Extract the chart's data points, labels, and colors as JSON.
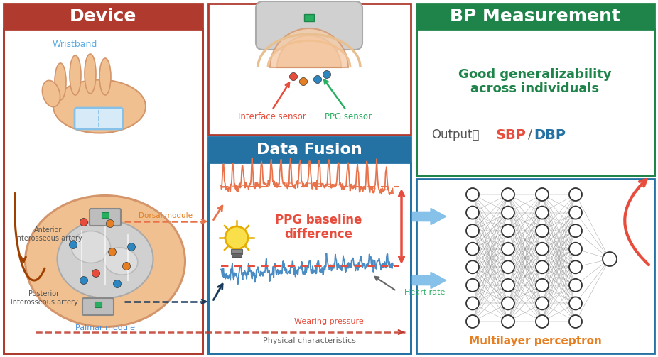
{
  "device_panel": {
    "title": "Device",
    "title_color": "#FFFFFF",
    "bg_color": "#B03A2E",
    "border_color": "#B03A2E",
    "wristband_label": "Wristband",
    "wristband_color": "#5DADE2",
    "dorsal_label": "Dorsal module",
    "dorsal_color": "#E67E22",
    "anterior_label": "Anterior\ninterosseous artery",
    "anterior_color": "#555555",
    "posterior_label": "Posterior\ninterosseous artery",
    "posterior_color": "#555555",
    "palmar_label": "Palmar module",
    "palmar_color": "#4A90D9",
    "skin_color": "#F0C090",
    "skin_edge": "#D4956A",
    "gray_color": "#C8C8C8",
    "gray_edge": "#999999"
  },
  "sensor_panel": {
    "border_color": "#B03A2E",
    "interface_label": "Interface sensor",
    "interface_color": "#E74C3C",
    "ppg_label": "PPG sensor",
    "ppg_color": "#27AE60"
  },
  "datafusion_panel": {
    "title": "Data Fusion",
    "title_color": "#FFFFFF",
    "bg_color": "#2471A3",
    "border_color": "#2471A3",
    "ppg_baseline_label": "PPG baseline\ndifference",
    "ppg_baseline_color": "#E74C3C",
    "heart_rate_label": "Heart rate",
    "heart_rate_color": "#27AE60",
    "wearing_pressure_label": "Wearing pressure",
    "wearing_pressure_color": "#E74C3C",
    "physical_label": "Physical characteristics",
    "physical_color": "#666666"
  },
  "bp_panel": {
    "title": "BP Measurement",
    "title_color": "#FFFFFF",
    "bg_color": "#1E8449",
    "border_color": "#1E8449",
    "generalizability_text": "Good generalizability\nacross individuals",
    "generalizability_color": "#1E8449",
    "output_color": "#555555",
    "sbp_color": "#E74C3C",
    "dbp_color": "#2471A3"
  },
  "mlp_panel": {
    "border_color": "#2471A3",
    "label": "Multilayer perceptron",
    "label_color": "#E67E22"
  },
  "colors": {
    "orange_signal": "#E8724A",
    "blue_signal": "#4A8CC4",
    "red_arrow": "#E74C3C",
    "red_dashed": "#C0392B",
    "dark_blue_dashed": "#1A3A5C",
    "orange_brown": "#A04000",
    "blue_arrow": "#5DADE2"
  }
}
